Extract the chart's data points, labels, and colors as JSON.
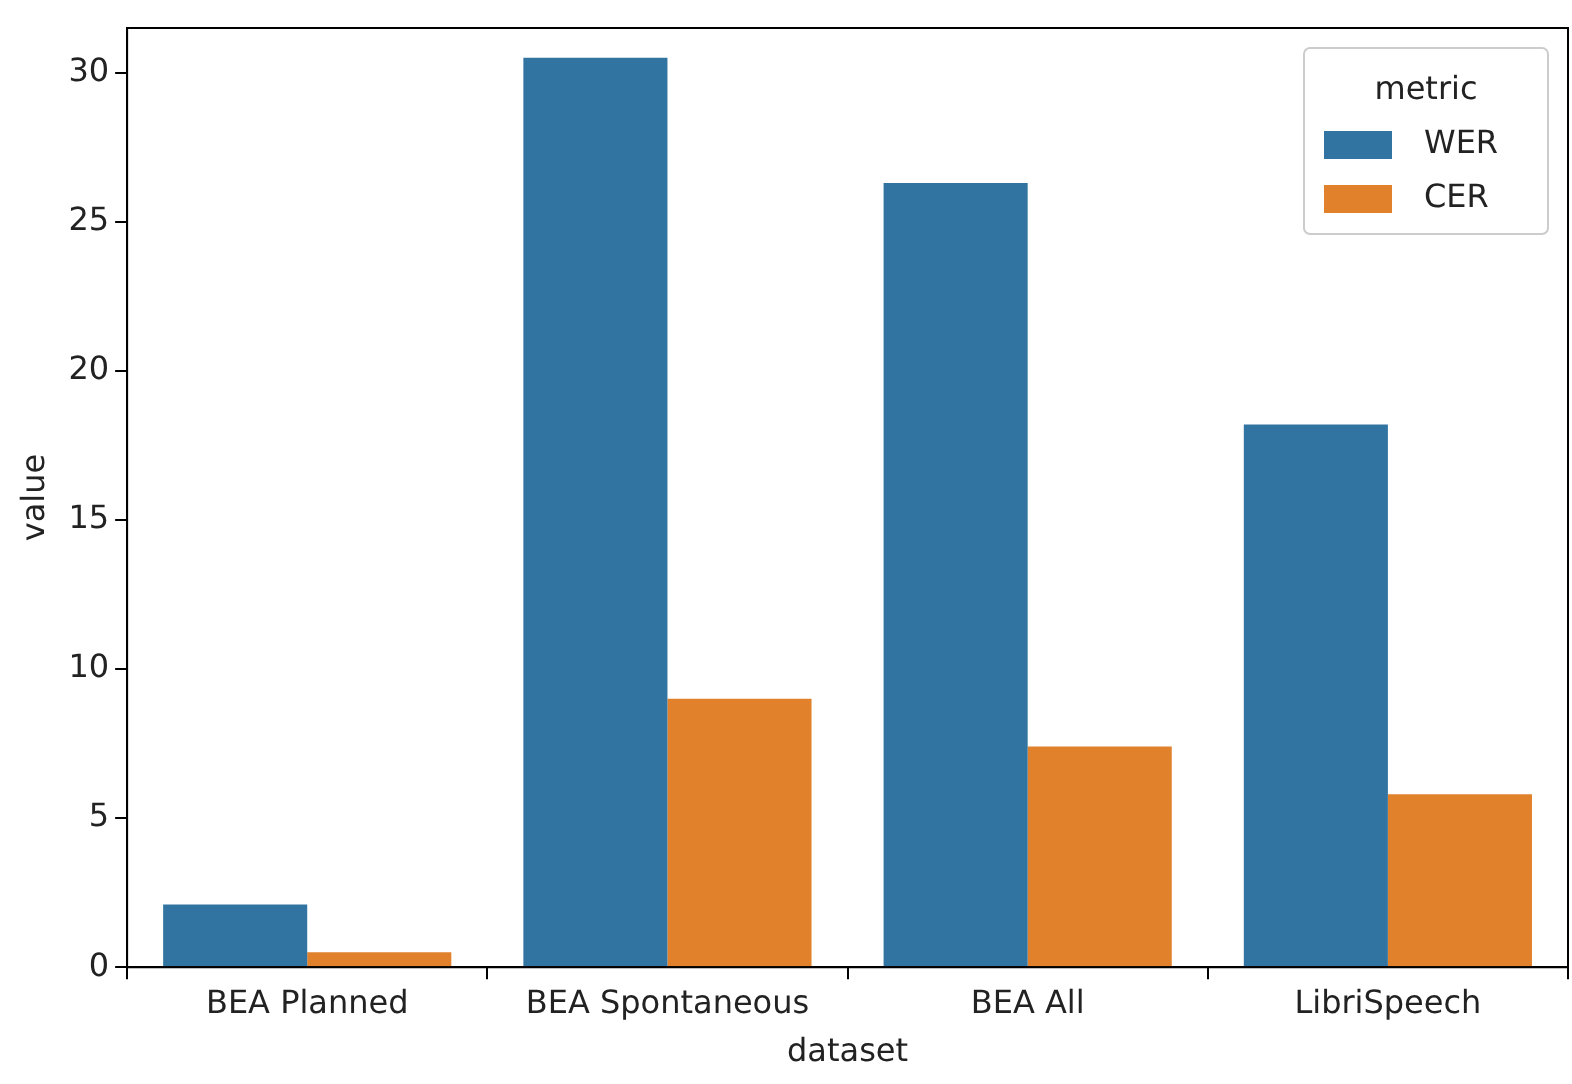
{
  "chart_data": {
    "type": "bar",
    "xlabel": "dataset",
    "ylabel": "value",
    "legend_title": "metric",
    "legend": "top right",
    "categories": [
      "BEA Planned",
      "BEA Spontaneous",
      "BEA All",
      "LibriSpeech"
    ],
    "series": [
      {
        "name": "WER",
        "color": "#3274a1",
        "values": [
          2.1,
          30.5,
          26.3,
          18.2
        ]
      },
      {
        "name": "CER",
        "color": "#e1812c",
        "values": [
          0.5,
          9.0,
          7.4,
          5.8
        ]
      }
    ],
    "ylim": [
      0,
      31.5
    ],
    "yticks": [
      0,
      5,
      10,
      15,
      20,
      25,
      30
    ]
  }
}
